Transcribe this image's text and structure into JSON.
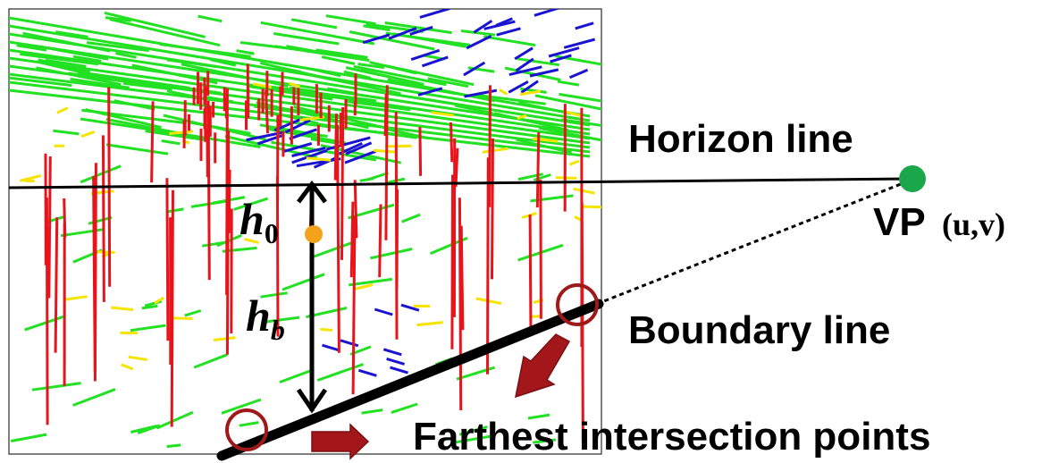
{
  "labels": {
    "horizon": "Horizon line",
    "vp": "VP",
    "vp_coords": "(u,v)",
    "boundary": "Boundary line",
    "farthest": "Farthest intersection points",
    "h0_main": "h",
    "h0_sub": "0",
    "hb_main": "h",
    "hb_sub": "b"
  },
  "colors": {
    "vertical_segments": "#e8141b",
    "horizontal_segments": "#22e022",
    "vanishing_segments": "#1a14d2",
    "misc_segments": "#f5e400",
    "vp_marker": "#1aa64a",
    "midpoint_marker": "#f2a21b",
    "circle_marker": "#9e1a1a",
    "arrow": "#a3171b",
    "lines": "#000000"
  },
  "icons": {
    "vp_marker": "filled-circle",
    "intersection_markers": "open-circle",
    "direction_arrows": "block-arrow"
  }
}
